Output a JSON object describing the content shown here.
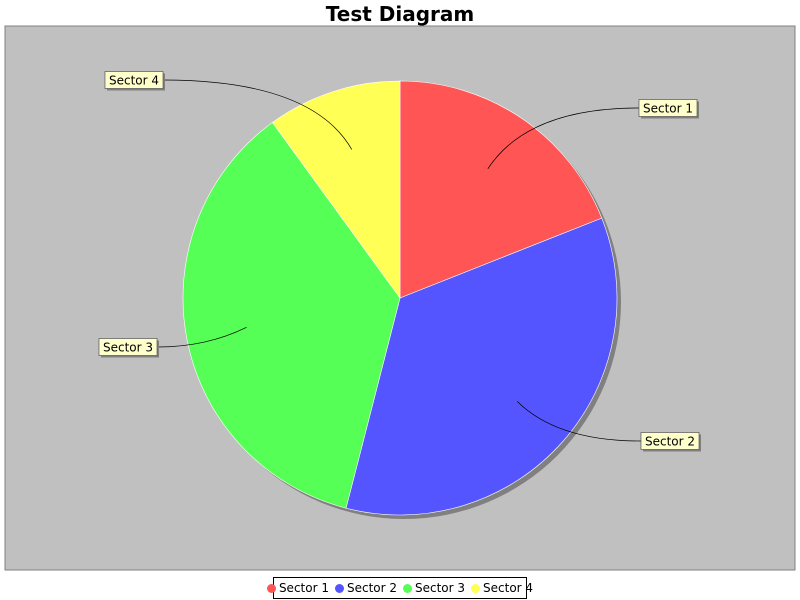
{
  "chart_data": {
    "type": "pie",
    "title": "Test Diagram",
    "categories": [
      "Sector 1",
      "Sector 2",
      "Sector 3",
      "Sector 4"
    ],
    "values": [
      19,
      35,
      36,
      10
    ],
    "colors": [
      "#ff5555",
      "#5555ff",
      "#55ff55",
      "#ffff55"
    ],
    "plot_background": "#c0c0c0",
    "label_background": "#ffffcc",
    "legend_position": "bottom"
  }
}
